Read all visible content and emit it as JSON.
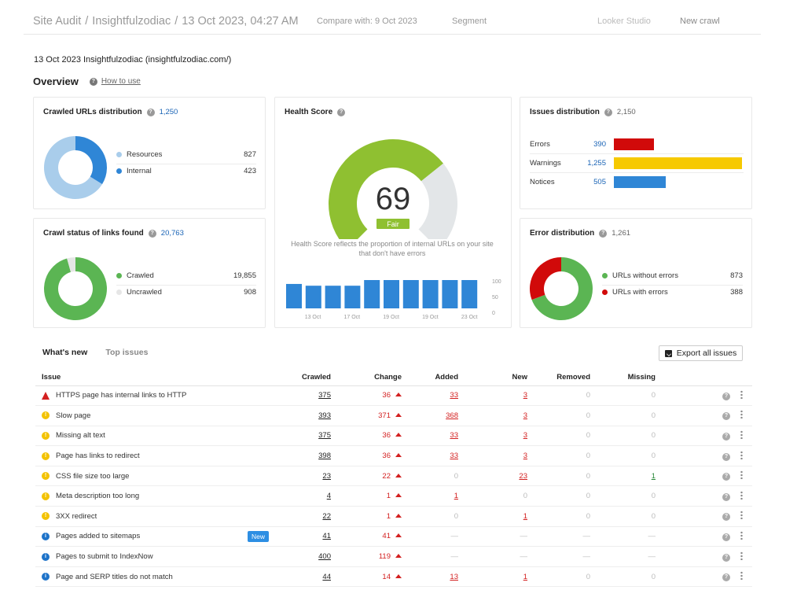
{
  "header": {
    "app": "Site Audit",
    "project": "Insightfulzodiac",
    "crawl_date": "13 Oct 2023, 04:27 AM",
    "compare": "Compare with: 9 Oct 2023",
    "segment": "Segment",
    "looker": "Looker Studio",
    "new_crawl": "New crawl",
    "sep": "/"
  },
  "project_line": "13 Oct 2023 Insightfulzodiac (insightfulzodiac.com/)",
  "overview": {
    "title": "Overview",
    "how_to": "How to use",
    "help": "?"
  },
  "crawled_urls": {
    "title": "Crawled URLs distribution",
    "count": "1,250",
    "items": [
      {
        "label": "Resources",
        "value": "827",
        "color": "#a9cdeb"
      },
      {
        "label": "Internal",
        "value": "423",
        "color": "#2f86d6"
      }
    ]
  },
  "crawl_status": {
    "title": "Crawl status of links found",
    "count": "20,763",
    "items": [
      {
        "label": "Crawled",
        "value": "19,855",
        "color": "#5bb553"
      },
      {
        "label": "Uncrawled",
        "value": "908",
        "color": "#e6e6e6"
      }
    ]
  },
  "health": {
    "title": "Health Score",
    "score": "69",
    "grade": "Fair",
    "desc": "Health Score reflects the proportion of internal URLs on your site that don't have errors",
    "bars": [
      69,
      64,
      64,
      64,
      80,
      80,
      80,
      80,
      80,
      80
    ],
    "x_labels": [
      "13 Oct",
      "17 Oct",
      "19 Oct",
      "19 Oct",
      "23 Oct"
    ],
    "y_labels": [
      "100",
      "50",
      "0"
    ]
  },
  "issues_dist": {
    "title": "Issues distribution",
    "count": "2,150",
    "rows": [
      {
        "label": "Errors",
        "value": "390",
        "color": "#d10a0a"
      },
      {
        "label": "Warnings",
        "value": "1,255",
        "color": "#f6c900"
      },
      {
        "label": "Notices",
        "value": "505",
        "color": "#2f86d6"
      }
    ]
  },
  "error_dist": {
    "title": "Error distribution",
    "count": "1,261",
    "items": [
      {
        "label": "URLs without errors",
        "value": "873",
        "color": "#5bb553"
      },
      {
        "label": "URLs with errors",
        "value": "388",
        "color": "#d10a0a"
      }
    ]
  },
  "tabs": {
    "active": "What's new",
    "other": "Top issues"
  },
  "export": "Export all issues",
  "table": {
    "headers": [
      "Issue",
      "Crawled",
      "Change",
      "Added",
      "New",
      "Removed",
      "Missing"
    ],
    "rows": [
      {
        "type": "err",
        "issue": "HTTPS page has internal links to HTTP",
        "badge": "",
        "crawled": "375",
        "change": "36",
        "added": "33",
        "new": "3",
        "removed": "0",
        "missing": "0"
      },
      {
        "type": "warn",
        "issue": "Slow page",
        "badge": "",
        "crawled": "393",
        "change": "371",
        "added": "368",
        "new": "3",
        "removed": "0",
        "missing": "0"
      },
      {
        "type": "warn",
        "issue": "Missing alt text",
        "badge": "",
        "crawled": "375",
        "change": "36",
        "added": "33",
        "new": "3",
        "removed": "0",
        "missing": "0"
      },
      {
        "type": "warn",
        "issue": "Page has links to redirect",
        "badge": "",
        "crawled": "398",
        "change": "36",
        "added": "33",
        "new": "3",
        "removed": "0",
        "missing": "0"
      },
      {
        "type": "warn",
        "issue": "CSS file size too large",
        "badge": "",
        "crawled": "23",
        "change": "22",
        "added": "0",
        "new": "23",
        "removed": "0",
        "missing": "1"
      },
      {
        "type": "warn",
        "issue": "Meta description too long",
        "badge": "",
        "crawled": "4",
        "change": "1",
        "added": "1",
        "new": "0",
        "removed": "0",
        "missing": "0"
      },
      {
        "type": "warn",
        "issue": "3XX redirect",
        "badge": "",
        "crawled": "22",
        "change": "1",
        "added": "0",
        "new": "1",
        "removed": "0",
        "missing": "0"
      },
      {
        "type": "info",
        "issue": "Pages added to sitemaps",
        "badge": "New",
        "crawled": "41",
        "change": "41",
        "added": "—",
        "new": "—",
        "removed": "—",
        "missing": "—"
      },
      {
        "type": "info",
        "issue": "Pages to submit to IndexNow",
        "badge": "",
        "crawled": "400",
        "change": "119",
        "added": "—",
        "new": "—",
        "removed": "—",
        "missing": "—"
      },
      {
        "type": "info",
        "issue": "Page and SERP titles do not match",
        "badge": "",
        "crawled": "44",
        "change": "14",
        "added": "13",
        "new": "1",
        "removed": "0",
        "missing": "0"
      }
    ]
  }
}
